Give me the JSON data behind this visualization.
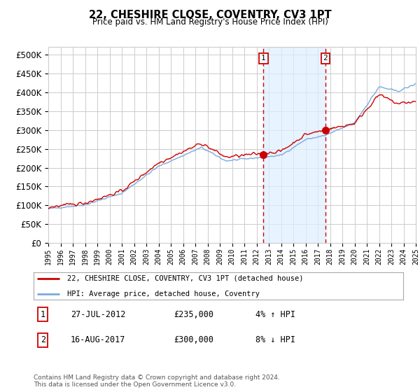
{
  "title": "22, CHESHIRE CLOSE, COVENTRY, CV3 1PT",
  "subtitle": "Price paid vs. HM Land Registry's House Price Index (HPI)",
  "ylabel_ticks": [
    "£0",
    "£50K",
    "£100K",
    "£150K",
    "£200K",
    "£250K",
    "£300K",
    "£350K",
    "£400K",
    "£450K",
    "£500K"
  ],
  "ytick_values": [
    0,
    50000,
    100000,
    150000,
    200000,
    250000,
    300000,
    350000,
    400000,
    450000,
    500000
  ],
  "ylim": [
    0,
    520000
  ],
  "line1_color": "#cc0000",
  "line2_color": "#7aaadd",
  "line2_fill_color": "#ddeeff",
  "grid_color": "#cccccc",
  "background_color": "#ffffff",
  "sale1_x": 2012.57,
  "sale1_price": 235000,
  "sale2_x": 2017.62,
  "sale2_price": 300000,
  "legend_line1": "22, CHESHIRE CLOSE, COVENTRY, CV3 1PT (detached house)",
  "legend_line2": "HPI: Average price, detached house, Coventry",
  "table_rows": [
    [
      "1",
      "27-JUL-2012",
      "£235,000",
      "4% ↑ HPI"
    ],
    [
      "2",
      "16-AUG-2017",
      "£300,000",
      "8% ↓ HPI"
    ]
  ],
  "footer": "Contains HM Land Registry data © Crown copyright and database right 2024.\nThis data is licensed under the Open Government Licence v3.0.",
  "xstart_year": 1995,
  "xend_year": 2025,
  "seed": 42
}
